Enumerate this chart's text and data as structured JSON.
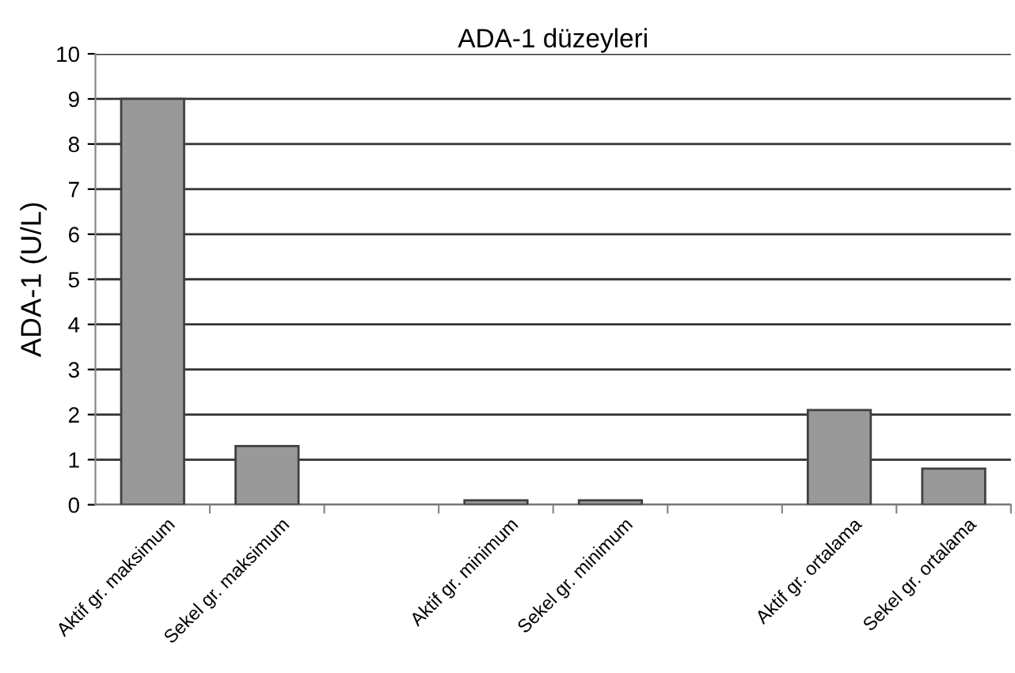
{
  "chart_data": {
    "type": "bar",
    "title": "ADA-1 düzeyleri",
    "ylabel": "ADA-1 (U/L)",
    "categories": [
      "Aktif gr. maksimum",
      "Sekel gr. maksimum",
      null,
      "Aktif gr. minimum",
      "Sekel gr. minimum",
      null,
      "Aktif gr. ortalama",
      "Sekel gr. ortalama"
    ],
    "values": [
      9,
      1.3,
      null,
      0.1,
      0.1,
      null,
      2.1,
      0.8
    ],
    "color": "#999999",
    "ylim": [
      0,
      10
    ],
    "yticks": [
      0,
      1,
      2,
      3,
      4,
      5,
      6,
      7,
      8,
      9,
      10
    ],
    "grid": "y",
    "legend": false
  }
}
